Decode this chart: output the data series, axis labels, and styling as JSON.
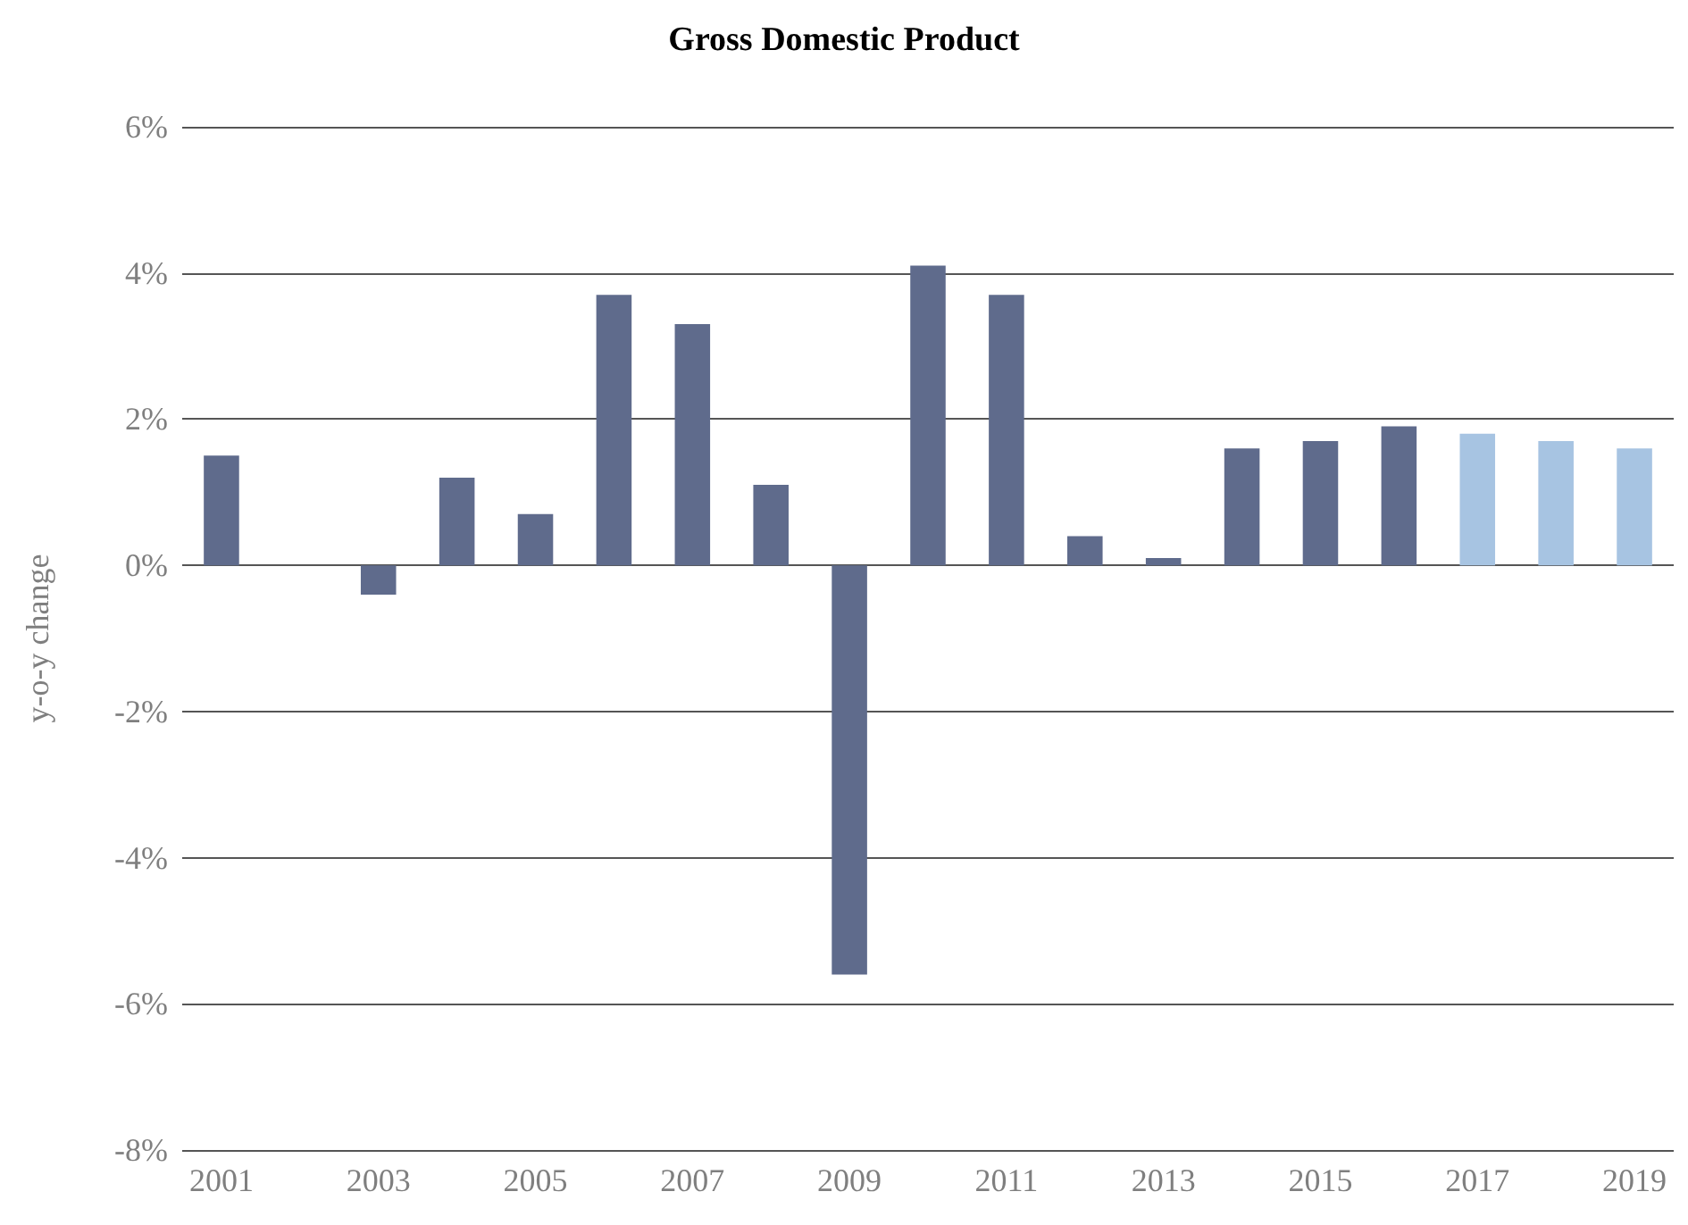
{
  "chart_data": {
    "type": "bar",
    "title": "Gross Domestic Product",
    "ylabel": "y-o-y change",
    "categories": [
      "2001",
      null,
      "2003",
      null,
      "2005",
      null,
      "2007",
      null,
      "2009",
      null,
      "2011",
      null,
      "2013",
      null,
      "2015",
      null,
      "2017",
      null,
      "2019"
    ],
    "values": [
      1.5,
      0,
      -0.4,
      1.2,
      0.7,
      3.7,
      3.3,
      1.1,
      -5.6,
      4.1,
      3.7,
      0.4,
      0.1,
      1.6,
      1.7,
      1.9,
      1.8,
      1.7,
      1.6
    ],
    "colors": [
      "#5f6b8c",
      "#5f6b8c",
      "#5f6b8c",
      "#5f6b8c",
      "#5f6b8c",
      "#5f6b8c",
      "#5f6b8c",
      "#5f6b8c",
      "#5f6b8c",
      "#5f6b8c",
      "#5f6b8c",
      "#5f6b8c",
      "#5f6b8c",
      "#5f6b8c",
      "#5f6b8c",
      "#5f6b8c",
      "#a7c4e2",
      "#a7c4e2",
      "#a7c4e2"
    ],
    "ylim": [
      -8,
      6
    ],
    "yticks": [
      {
        "value": -8,
        "label": "-8%"
      },
      {
        "value": -6,
        "label": "-6%"
      },
      {
        "value": -4,
        "label": "-4%"
      },
      {
        "value": -2,
        "label": "-2%"
      },
      {
        "value": 0,
        "label": "0%"
      },
      {
        "value": 2,
        "label": "2%"
      },
      {
        "value": 4,
        "label": "4%"
      },
      {
        "value": 6,
        "label": "6%"
      }
    ],
    "grid": "y"
  }
}
